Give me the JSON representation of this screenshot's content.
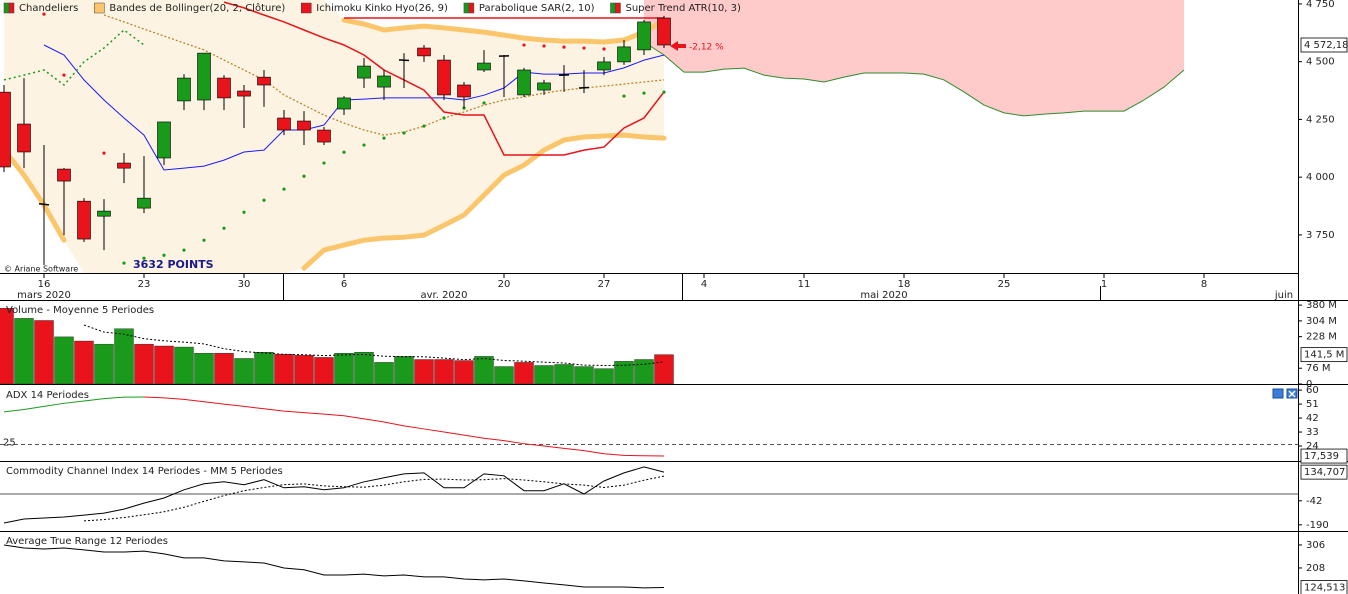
{
  "chart_data": [
    {
      "type": "candlestick",
      "legend": [
        {
          "label": "Chandeliers",
          "colors": [
            "#1a9a1a",
            "#e8131b"
          ]
        },
        {
          "label": "Bandes de Bollinger(20, 2, Clôture)",
          "colors": [
            "#fbc66b"
          ]
        },
        {
          "label": "Ichimoku Kinko Hyo(26, 9)",
          "colors": [
            "#e8131b"
          ]
        },
        {
          "label": "Parabolique SAR(2, 10)",
          "colors": [
            "#1a9a1a",
            "#e8131b"
          ]
        },
        {
          "label": "Super Trend ATR(10, 3)",
          "colors": [
            "#1a9a1a",
            "#e8131b"
          ]
        }
      ],
      "up_color": "#1a9a1a",
      "down_color": "#e8131b",
      "open": [
        4368,
        4230,
        3885,
        4035,
        3896,
        3831,
        4061,
        3866,
        4083,
        4330,
        4334,
        4429,
        4373,
        4433,
        4256,
        4243,
        4204,
        4295,
        4429,
        4390,
        4508,
        4559,
        4507,
        4399,
        4464,
        4524,
        4356,
        4377,
        4441,
        4386,
        4464,
        4499,
        4551,
        4689
      ],
      "high": [
        4399,
        4429,
        4139,
        4039,
        3909,
        3905,
        4104,
        4091,
        4239,
        4446,
        4537,
        4442,
        4399,
        4464,
        4291,
        4286,
        4217,
        4351,
        4516,
        4464,
        4537,
        4572,
        4529,
        4412,
        4550,
        4529,
        4473,
        4421,
        4485,
        4464,
        4520,
        4594,
        4681,
        4698
      ],
      "low": [
        4022,
        4039,
        3619,
        3749,
        3719,
        3684,
        3974,
        3844,
        4052,
        4290,
        4290,
        4290,
        4213,
        4304,
        4182,
        4139,
        4139,
        4269,
        4386,
        4334,
        4386,
        4499,
        4334,
        4299,
        4455,
        4347,
        4347,
        4356,
        4369,
        4364,
        4442,
        4486,
        4529,
        4559
      ],
      "close": [
        4044,
        4109,
        3880,
        3983,
        3732,
        3853,
        4039,
        3909,
        4239,
        4429,
        4537,
        4343,
        4351,
        4399,
        4204,
        4204,
        4152,
        4343,
        4481,
        4438,
        4505,
        4525,
        4356,
        4347,
        4494,
        4525,
        4464,
        4408,
        4443,
        4388,
        4499,
        4564,
        4672,
        4572.18
      ],
      "value_labels": [
        null,
        null,
        null,
        null,
        null,
        null,
        null,
        null,
        null,
        null,
        null,
        null,
        null,
        null,
        null,
        null,
        null,
        null,
        null,
        null,
        null,
        null,
        null,
        null,
        null,
        null,
        null,
        null,
        null,
        null,
        null,
        null,
        null,
        "4 572,18"
      ],
      "bollinger": {
        "fill": "#fdf3e3",
        "color": "#fbc66b",
        "middle_color": "#b8862b",
        "upper": [
          null,
          null,
          null,
          null,
          null,
          null,
          null,
          null,
          null,
          null,
          null,
          null,
          null,
          null,
          null,
          null,
          null,
          4680,
          4663,
          4637,
          4646,
          4654,
          4646,
          4637,
          4628,
          4615,
          4602,
          4594,
          4589,
          4589,
          4585,
          4594,
          4628,
          4680
        ],
        "middle": [
          null,
          null,
          null,
          null,
          null,
          4702,
          4672,
          4641,
          4611,
          4581,
          4551,
          4507,
          4464,
          4420,
          4356,
          4312,
          4269,
          4234,
          4204,
          4182,
          4195,
          4221,
          4256,
          4282,
          4312,
          4334,
          4347,
          4364,
          4377,
          4386,
          4394,
          4403,
          4412,
          4421
        ],
        "lower": [
          4117,
          4009,
          3879,
          3727,
          null,
          null,
          null,
          null,
          null,
          null,
          null,
          null,
          null,
          null,
          null,
          3606,
          3684,
          3706,
          3727,
          3736,
          3740,
          3749,
          3792,
          3836,
          3922,
          4009,
          4052,
          4117,
          4161,
          4174,
          4178,
          4182,
          4174,
          4169
        ]
      },
      "ichimoku": {
        "tenkan": {
          "color": "#1a1aff",
          "values": [
            null,
            null,
            4572,
            4529,
            4421,
            4334,
            4256,
            4182,
            4031,
            4039,
            4048,
            4074,
            4109,
            4117,
            4204,
            4204,
            4226,
            4334,
            4338,
            4343,
            4343,
            4343,
            4343,
            4334,
            4355,
            4386,
            4455,
            4446,
            4446,
            4451,
            4451,
            4473,
            4507,
            4529
          ]
        },
        "kijun": {
          "color": "#e8131b",
          "values": [
            null,
            null,
            null,
            null,
            null,
            null,
            null,
            null,
            null,
            null,
            null,
            4758,
            4733,
            4702,
            4672,
            4637,
            4603,
            4572,
            4529,
            4464,
            4421,
            4377,
            4282,
            4269,
            4269,
            4096,
            4096,
            4096,
            4096,
            4117,
            4130,
            4213,
            4256,
            4369
          ]
        },
        "senkou_b": {
          "color": "#2e8b2e",
          "fill": "#ffcaca",
          "values": [
            null,
            null,
            null,
            null,
            null,
            null,
            null,
            null,
            null,
            null,
            null,
            null,
            null,
            null,
            null,
            null,
            null,
            null,
            null,
            null,
            null,
            null,
            null,
            null,
            null,
            null,
            null,
            null,
            null,
            null,
            null,
            null,
            4585,
            4529,
            4455,
            4455,
            4468,
            4472,
            4442,
            4429,
            4425,
            4412,
            4433,
            4451,
            4451,
            4451,
            4446,
            4421,
            4369,
            4312,
            4278,
            4265,
            4273,
            4278,
            4286,
            4286,
            4286,
            4334,
            4390,
            4464
          ]
        }
      },
      "sar": {
        "up": {
          "color": "#1a9a1a",
          "values": [
            null,
            null,
            null,
            null,
            null,
            null,
            3628,
            3649,
            3662,
            3684,
            3727,
            3779,
            3848,
            3900,
            3948,
            4004,
            4061,
            4108,
            4139,
            4169,
            4191,
            4221,
            4256,
            4299,
            4321,
            null,
            null,
            null,
            null,
            null,
            null,
            4351,
            4364,
            4368
          ]
        },
        "down": {
          "color": "#e8131b",
          "values": [
            null,
            null,
            4706,
            4442,
            null,
            4104,
            null,
            null,
            null,
            null,
            null,
            null,
            null,
            null,
            null,
            null,
            null,
            null,
            null,
            null,
            null,
            null,
            null,
            null,
            null,
            null,
            4572,
            4568,
            4563,
            4559,
            4555,
            null,
            null,
            null
          ]
        }
      },
      "supertrend": {
        "up": {
          "color": "#1a9a1a",
          "values": [
            4421,
            4442,
            4464,
            4399,
            4499,
            4559,
            4637,
            4572,
            null,
            null,
            null,
            null,
            null,
            null,
            null,
            null,
            null,
            null,
            null,
            null,
            null,
            null,
            null,
            null,
            null,
            null,
            null,
            null,
            null,
            null,
            null,
            null,
            null,
            null
          ]
        },
        "down": {
          "color": "#e8131b",
          "values": [
            null,
            null,
            null,
            null,
            null,
            null,
            null,
            null,
            null,
            null,
            null,
            null,
            null,
            null,
            null,
            null,
            null,
            4689,
            4689,
            4689,
            4689,
            4689,
            4689,
            4689,
            4689,
            4689,
            4689,
            4689,
            4689,
            4689,
            4689,
            4689,
            4689,
            4689
          ]
        }
      },
      "annotations": [
        "-2,12 %",
        "3632 POINTS"
      ],
      "copyright": "© Ariane Software",
      "ylim": [
        3585,
        4767
      ],
      "yticks": [
        {
          "value": 4750,
          "label": "4 750"
        },
        {
          "value": 4500,
          "label": "4 500"
        },
        {
          "value": 4250,
          "label": "4 250"
        },
        {
          "value": 4000,
          "label": "4 000"
        },
        {
          "value": 3750,
          "label": "3 750"
        }
      ],
      "xlim": [
        -0.2,
        64.7
      ],
      "xticks": [
        {
          "value": 2,
          "label": "16"
        },
        {
          "value": 7,
          "label": "23"
        },
        {
          "value": 12,
          "label": "30"
        },
        {
          "value": 17,
          "label": "6"
        },
        {
          "value": 25,
          "label": "20"
        },
        {
          "value": 30,
          "label": "27"
        },
        {
          "value": 35,
          "label": "4"
        },
        {
          "value": 40,
          "label": "11"
        },
        {
          "value": 45,
          "label": "18"
        },
        {
          "value": 50,
          "label": "25"
        },
        {
          "value": 55,
          "label": "1"
        },
        {
          "value": 60,
          "label": "8"
        }
      ],
      "month_ticks": [
        {
          "value": 2,
          "label": "mars 2020"
        },
        {
          "value": 22,
          "label": "avr. 2020"
        },
        {
          "value": 44,
          "label": "mai 2020"
        },
        {
          "value": 64,
          "label": "juin"
        }
      ],
      "grid": false
    },
    {
      "type": "bar",
      "title": "Volume  - Moyenne 5 Periodes",
      "values": [
        365,
        316,
        306,
        227,
        207,
        192,
        266,
        192,
        183,
        178,
        148,
        148,
        123,
        153,
        143,
        138,
        128,
        148,
        153,
        104,
        133,
        118,
        118,
        113,
        133,
        84,
        104,
        89,
        94,
        84,
        74,
        109,
        118,
        141.5
      ],
      "value_labels": [
        null,
        null,
        null,
        null,
        null,
        null,
        null,
        null,
        null,
        null,
        null,
        null,
        null,
        null,
        null,
        null,
        null,
        null,
        null,
        null,
        null,
        null,
        null,
        null,
        null,
        null,
        null,
        null,
        null,
        null,
        null,
        null,
        null,
        "141,5 M"
      ],
      "colors": [
        "#e8131b",
        "#1a9a1a",
        "#e8131b",
        "#1a9a1a",
        "#e8131b",
        "#1a9a1a",
        "#1a9a1a",
        "#e8131b",
        "#e8131b",
        "#1a9a1a",
        "#1a9a1a",
        "#e8131b",
        "#1a9a1a",
        "#1a9a1a",
        "#e8131b",
        "#e8131b",
        "#e8131b",
        "#1a9a1a",
        "#1a9a1a",
        "#1a9a1a",
        "#1a9a1a",
        "#e8131b",
        "#e8131b",
        "#e8131b",
        "#1a9a1a",
        "#1a9a1a",
        "#e8131b",
        "#1a9a1a",
        "#1a9a1a",
        "#1a9a1a",
        "#1a9a1a",
        "#1a9a1a",
        "#1a9a1a",
        "#e8131b"
      ],
      "average": [
        null,
        null,
        null,
        null,
        284,
        250,
        240,
        218,
        208,
        202,
        193,
        170,
        156,
        150,
        143,
        141,
        137,
        140,
        142,
        134,
        131,
        131,
        125,
        117,
        123,
        113,
        110,
        105,
        101,
        91,
        89,
        90,
        95,
        107
      ],
      "ylim": [
        0,
        395
      ],
      "yticks": [
        {
          "value": 380,
          "label": "380 M"
        },
        {
          "value": 304,
          "label": "304 M"
        },
        {
          "value": 228,
          "label": "228 M"
        },
        {
          "value": 76,
          "label": "76 M"
        },
        0
      ]
    },
    {
      "type": "line",
      "title": "ADX 14 Periodes",
      "rising_color": "#1a9a1a",
      "falling_color": "#e8131b",
      "values": [
        46,
        47.5,
        49.5,
        51.5,
        53,
        54.5,
        55.5,
        55.6,
        55,
        54,
        52.5,
        51,
        49.5,
        48,
        46.5,
        45.5,
        44.5,
        43.5,
        41.5,
        39.5,
        37,
        35,
        33,
        31,
        29,
        27.5,
        25.5,
        24,
        22.5,
        21,
        19,
        18,
        17.7,
        17.539
      ],
      "value_labels": [
        null,
        null,
        null,
        null,
        null,
        null,
        null,
        null,
        null,
        null,
        null,
        null,
        null,
        null,
        null,
        null,
        null,
        null,
        null,
        null,
        null,
        null,
        null,
        null,
        null,
        null,
        null,
        null,
        null,
        null,
        null,
        null,
        null,
        "17,539"
      ],
      "reference_line": 25,
      "ylim": [
        15,
        62
      ],
      "yticks": [
        60,
        51,
        42,
        33,
        24
      ]
    },
    {
      "type": "line",
      "title": "Commodity Channel Index 14 Periodes - MM  5 Periodes",
      "color": "#000000",
      "values": [
        -179,
        -154,
        -148,
        -142,
        -130,
        -118,
        -93,
        -56,
        -25,
        26,
        63,
        75,
        57,
        88,
        38,
        44,
        26,
        38,
        75,
        100,
        124,
        130,
        38,
        38,
        124,
        112,
        20,
        20,
        63,
        0,
        80,
        130,
        167,
        134.707
      ],
      "value_labels": [
        null,
        null,
        null,
        null,
        null,
        null,
        null,
        null,
        null,
        null,
        null,
        null,
        null,
        null,
        null,
        null,
        null,
        null,
        null,
        null,
        null,
        null,
        null,
        null,
        null,
        null,
        null,
        null,
        null,
        null,
        null,
        null,
        null,
        "134,707"
      ],
      "average": [
        null,
        null,
        null,
        null,
        -166,
        -158,
        -145,
        -128,
        -110,
        -82,
        -45,
        -10,
        20,
        40,
        58,
        62,
        50,
        45,
        42,
        55,
        75,
        90,
        92,
        86,
        88,
        95,
        86,
        75,
        62,
        55,
        40,
        55,
        85,
        110
      ],
      "reference_line": 0,
      "ylim": [
        -222,
        191
      ],
      "yticks": [
        -42,
        -190
      ]
    },
    {
      "type": "line",
      "title": "Average True Range 12 Periodes",
      "color": "#000000",
      "values": [
        306,
        293,
        289,
        293,
        285,
        276,
        276,
        280,
        268,
        251,
        251,
        238,
        234,
        229,
        208,
        200,
        178,
        178,
        182,
        174,
        178,
        170,
        170,
        161,
        157,
        161,
        153,
        144,
        136,
        127,
        127,
        127,
        123,
        124.513
      ],
      "value_labels": [
        null,
        null,
        null,
        null,
        null,
        null,
        null,
        null,
        null,
        null,
        null,
        null,
        null,
        null,
        null,
        null,
        null,
        null,
        null,
        null,
        null,
        null,
        null,
        null,
        null,
        null,
        null,
        null,
        null,
        null,
        null,
        null,
        null,
        "124,513"
      ],
      "ylim": [
        97,
        357
      ],
      "yticks": [
        306,
        208
      ]
    }
  ]
}
